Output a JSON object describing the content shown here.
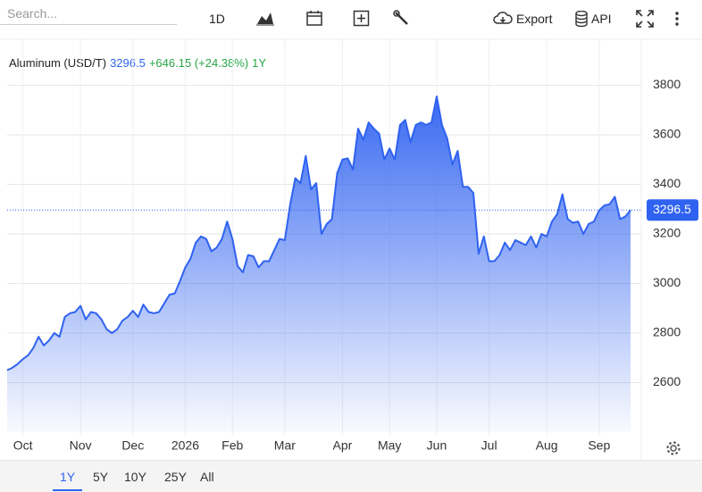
{
  "ui": {
    "search_placeholder": "Search...",
    "interval": "1D",
    "export": "Export",
    "api": "API",
    "ranges": [
      "1Y",
      "5Y",
      "10Y",
      "25Y",
      "All"
    ]
  },
  "chart_data": {
    "type": "area",
    "title": "Aluminum (USD/T)",
    "change": "+646.15 (+24.38%)",
    "period": "1Y",
    "categories": [
      null,
      null,
      null,
      "Oct",
      null,
      null,
      null,
      null,
      null,
      null,
      null,
      null,
      null,
      null,
      "Nov",
      null,
      null,
      null,
      null,
      null,
      null,
      null,
      null,
      null,
      "Dec",
      null,
      null,
      null,
      null,
      null,
      null,
      null,
      null,
      null,
      "2026",
      null,
      null,
      null,
      null,
      null,
      null,
      null,
      null,
      "Feb",
      null,
      null,
      null,
      null,
      null,
      null,
      null,
      null,
      null,
      "Mar",
      null,
      null,
      null,
      null,
      null,
      null,
      null,
      null,
      null,
      null,
      "Apr",
      null,
      null,
      null,
      null,
      null,
      null,
      null,
      null,
      "May",
      null,
      null,
      null,
      null,
      null,
      null,
      null,
      null,
      "Jun",
      null,
      null,
      null,
      null,
      null,
      null,
      null,
      null,
      null,
      "Jul",
      null,
      null,
      null,
      null,
      null,
      null,
      null,
      null,
      null,
      null,
      "Aug",
      null,
      null,
      null,
      null,
      null,
      null,
      null,
      null,
      null,
      "Sep",
      null,
      null,
      null,
      null,
      null,
      null
    ],
    "series": [
      {
        "name": "Aluminum (USD/T)",
        "color": "#2f62f0",
        "values": [
          2650,
          2660,
          2675,
          2695,
          2710,
          2740,
          2785,
          2750,
          2770,
          2800,
          2785,
          2865,
          2880,
          2885,
          2910,
          2855,
          2885,
          2880,
          2855,
          2815,
          2800,
          2815,
          2850,
          2865,
          2890,
          2865,
          2915,
          2885,
          2880,
          2885,
          2920,
          2955,
          2960,
          3010,
          3065,
          3100,
          3165,
          3190,
          3180,
          3130,
          3145,
          3180,
          3250,
          3180,
          3070,
          3045,
          3115,
          3110,
          3065,
          3090,
          3090,
          3135,
          3180,
          3175,
          3315,
          3425,
          3405,
          3515,
          3380,
          3405,
          3200,
          3240,
          3260,
          3445,
          3500,
          3505,
          3460,
          3625,
          3580,
          3650,
          3625,
          3605,
          3500,
          3545,
          3500,
          3640,
          3660,
          3570,
          3640,
          3650,
          3640,
          3650,
          3755,
          3640,
          3585,
          3480,
          3535,
          3390,
          3390,
          3365,
          3120,
          3190,
          3090,
          3090,
          3115,
          3165,
          3135,
          3175,
          3165,
          3155,
          3190,
          3145,
          3200,
          3190,
          3250,
          3280,
          3360,
          3260,
          3245,
          3250,
          3200,
          3240,
          3250,
          3295,
          3315,
          3320,
          3350,
          3260,
          3270,
          3296.5
        ]
      }
    ],
    "ylim": [
      2400,
      4000
    ],
    "yticks": [
      2600,
      2800,
      3000,
      3200,
      3400,
      3600,
      3800
    ],
    "grid": true
  }
}
